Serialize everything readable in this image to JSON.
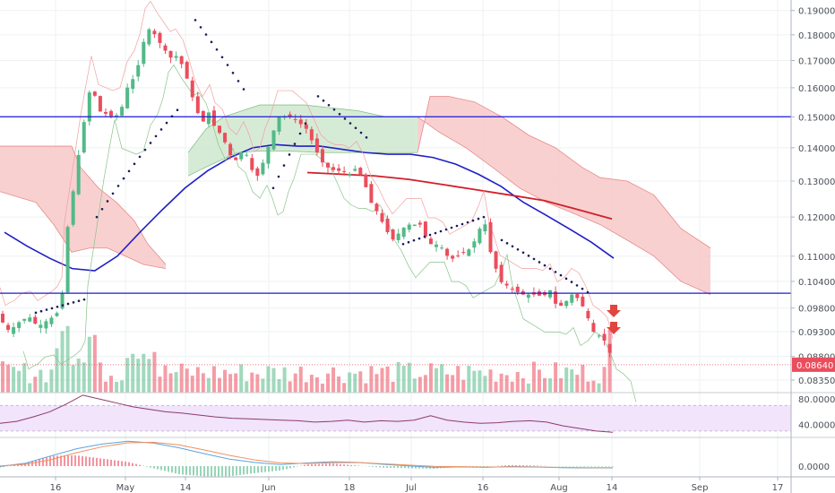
{
  "chart_data": {
    "type": "candlestick",
    "price_axis": {
      "ticks": [
        "0.19000",
        "0.18000",
        "0.17000",
        "0.16000",
        "0.15000",
        "0.14000",
        "0.13000",
        "0.12000",
        "0.11000",
        "0.10400",
        "0.09800",
        "0.09300",
        "0.08800",
        "0.08350"
      ],
      "ylim": [
        0.0812,
        0.1945
      ],
      "scale": "log"
    },
    "x_axis": {
      "ticks": [
        "16",
        "May",
        "14",
        "Jun",
        "18",
        "Jul",
        "16",
        "Aug",
        "14",
        "Sep",
        "17"
      ]
    },
    "current_price_label": "0.08640",
    "horizontal_levels": [
      0.15,
      0.1013
    ],
    "colors": {
      "up": "#53b987",
      "down": "#eb4d5c",
      "level": "#1a1adb",
      "ema_short": "#1f1fc8",
      "ema_long": "#d21f2a",
      "cloud_bear": "#f8c8c8",
      "cloud_bull": "#cfe8cf",
      "rsi_band": "#f1e4fb",
      "rsi_line": "#8e3a6d"
    },
    "ema_short": [
      0.116,
      0.1125,
      0.1095,
      0.107,
      0.1065,
      0.11,
      0.116,
      0.122,
      0.128,
      0.133,
      0.137,
      0.14,
      0.141,
      0.1405,
      0.1405,
      0.1395,
      0.1385,
      0.138,
      0.138,
      0.137,
      0.135,
      0.132,
      0.1285,
      0.124,
      0.1205,
      0.117,
      0.1135,
      0.1095
    ],
    "ema_long": [
      0.1325,
      0.132,
      0.1315,
      0.1305,
      0.129,
      0.1275,
      0.126,
      0.1245,
      0.122,
      0.1195
    ],
    "rsi_axis": {
      "ticks": [
        "80.0000",
        "40.0000"
      ],
      "ylim": [
        20,
        90
      ],
      "band": [
        30,
        70
      ]
    },
    "macd_axis": {
      "ticks": [
        "0.0000"
      ]
    },
    "indicators": {
      "rsi": [
        42,
        45,
        52,
        60,
        72,
        86,
        80,
        74,
        68,
        64,
        60,
        58,
        55,
        52,
        50,
        49,
        48,
        47,
        46,
        44,
        45,
        47,
        44,
        46,
        45,
        47,
        54,
        47,
        44,
        42,
        43,
        45,
        46,
        44,
        38,
        34,
        30,
        28
      ],
      "macd": [
        -0.0002,
        0.0015,
        0.0052,
        0.0088,
        0.0112,
        0.0126,
        0.0117,
        0.0093,
        0.0063,
        0.0035,
        0.0018,
        0.0008,
        0.0016,
        0.0022,
        0.0019,
        0.0009,
        0.0001,
        -0.0006,
        -0.0004,
        -0.0006,
        -0.0002,
        -0.0004,
        -0.0008,
        -0.0009,
        -0.0009
      ],
      "macd_signal": [
        0.0001,
        0.0009,
        0.0033,
        0.0068,
        0.0098,
        0.0118,
        0.0121,
        0.0108,
        0.0082,
        0.0054,
        0.0031,
        0.0016,
        0.0013,
        0.0017,
        0.0018,
        0.0012,
        0.0005,
        -0.0001,
        -0.0003,
        -0.0005,
        -0.0004,
        -0.0005,
        -0.0007,
        -0.0008,
        -0.0008
      ]
    }
  }
}
